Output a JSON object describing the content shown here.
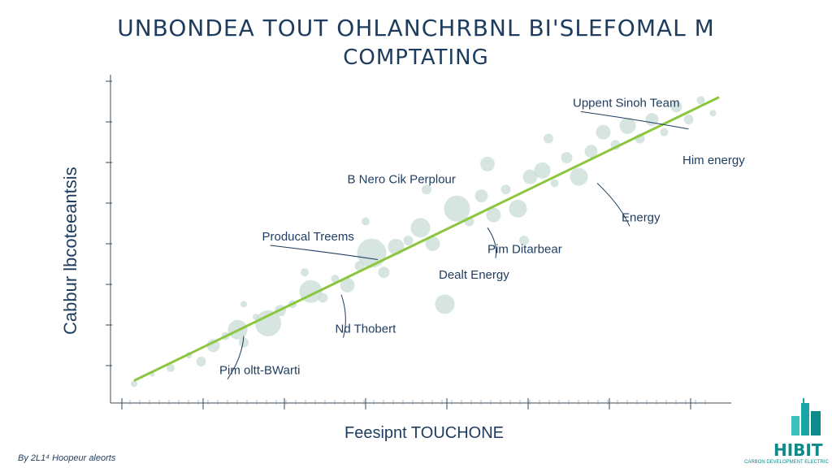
{
  "chart_data": {
    "type": "scatter",
    "title_line1": "UNBONDEA TOUT OHLANCHRBNL BI'SLEFOMAL M",
    "title_line2": "COMPTATING",
    "xlabel": "Feesipnt TOUCHONE",
    "ylabel": "Cabbur lbcoteeantsis",
    "xlim": [
      0,
      100
    ],
    "ylim": [
      0,
      100
    ],
    "trend_line": {
      "x": [
        2,
        98
      ],
      "y": [
        6,
        95
      ],
      "color": "#8cc63f"
    },
    "series": [
      {
        "color": "#c8dcd6",
        "points": [
          {
            "x": 2,
            "y": 5,
            "r": 4
          },
          {
            "x": 5,
            "y": 8,
            "r": 3
          },
          {
            "x": 8,
            "y": 10,
            "r": 5
          },
          {
            "x": 11,
            "y": 14,
            "r": 4
          },
          {
            "x": 13,
            "y": 12,
            "r": 6
          },
          {
            "x": 15,
            "y": 17,
            "r": 8
          },
          {
            "x": 17,
            "y": 20,
            "r": 5
          },
          {
            "x": 19,
            "y": 22,
            "r": 12
          },
          {
            "x": 20,
            "y": 18,
            "r": 6
          },
          {
            "x": 22,
            "y": 26,
            "r": 4
          },
          {
            "x": 24,
            "y": 24,
            "r": 16
          },
          {
            "x": 26,
            "y": 28,
            "r": 7
          },
          {
            "x": 28,
            "y": 30,
            "r": 5
          },
          {
            "x": 31,
            "y": 34,
            "r": 14
          },
          {
            "x": 33,
            "y": 32,
            "r": 6
          },
          {
            "x": 35,
            "y": 38,
            "r": 5
          },
          {
            "x": 37,
            "y": 36,
            "r": 9
          },
          {
            "x": 39,
            "y": 42,
            "r": 6
          },
          {
            "x": 41,
            "y": 46,
            "r": 18
          },
          {
            "x": 43,
            "y": 40,
            "r": 7
          },
          {
            "x": 45,
            "y": 48,
            "r": 10
          },
          {
            "x": 47,
            "y": 50,
            "r": 6
          },
          {
            "x": 49,
            "y": 54,
            "r": 12
          },
          {
            "x": 51,
            "y": 49,
            "r": 9
          },
          {
            "x": 53,
            "y": 30,
            "r": 12
          },
          {
            "x": 55,
            "y": 60,
            "r": 16
          },
          {
            "x": 57,
            "y": 56,
            "r": 6
          },
          {
            "x": 59,
            "y": 64,
            "r": 8
          },
          {
            "x": 61,
            "y": 58,
            "r": 9
          },
          {
            "x": 63,
            "y": 66,
            "r": 6
          },
          {
            "x": 65,
            "y": 60,
            "r": 11
          },
          {
            "x": 67,
            "y": 70,
            "r": 9
          },
          {
            "x": 69,
            "y": 72,
            "r": 10
          },
          {
            "x": 71,
            "y": 68,
            "r": 5
          },
          {
            "x": 73,
            "y": 76,
            "r": 7
          },
          {
            "x": 75,
            "y": 70,
            "r": 11
          },
          {
            "x": 77,
            "y": 78,
            "r": 8
          },
          {
            "x": 79,
            "y": 84,
            "r": 9
          },
          {
            "x": 81,
            "y": 80,
            "r": 6
          },
          {
            "x": 83,
            "y": 86,
            "r": 10
          },
          {
            "x": 85,
            "y": 82,
            "r": 6
          },
          {
            "x": 87,
            "y": 88,
            "r": 8
          },
          {
            "x": 89,
            "y": 84,
            "r": 5
          },
          {
            "x": 91,
            "y": 92,
            "r": 7
          },
          {
            "x": 93,
            "y": 88,
            "r": 6
          },
          {
            "x": 95,
            "y": 94,
            "r": 5
          },
          {
            "x": 97,
            "y": 90,
            "r": 4
          },
          {
            "x": 60,
            "y": 74,
            "r": 9
          },
          {
            "x": 70,
            "y": 82,
            "r": 6
          },
          {
            "x": 50,
            "y": 66,
            "r": 6
          },
          {
            "x": 40,
            "y": 56,
            "r": 5
          },
          {
            "x": 30,
            "y": 40,
            "r": 5
          },
          {
            "x": 20,
            "y": 30,
            "r": 4
          },
          {
            "x": 66,
            "y": 50,
            "r": 6
          }
        ]
      }
    ],
    "annotations": [
      {
        "text": "Uppent Sinoh Team",
        "x": 74,
        "y": 92,
        "ax": 93,
        "ay": 85
      },
      {
        "text": "Him energy",
        "x": 92,
        "y": 74
      },
      {
        "text": "B Nero Cik Perplour",
        "x": 37,
        "y": 68
      },
      {
        "text": "Energy",
        "x": 82,
        "y": 56,
        "ax": 78,
        "ay": 68
      },
      {
        "text": "Producal Treems",
        "x": 23,
        "y": 50,
        "ax": 42,
        "ay": 44
      },
      {
        "text": "Pim Ditarbear",
        "x": 60,
        "y": 46,
        "ax": 60,
        "ay": 54
      },
      {
        "text": "Dealt Energy",
        "x": 52,
        "y": 38
      },
      {
        "text": "Nd Thobert",
        "x": 35,
        "y": 21,
        "ax": 36,
        "ay": 33
      },
      {
        "text": "Pim oltt-BWarti",
        "x": 16,
        "y": 8,
        "ax": 20,
        "ay": 20
      }
    ]
  },
  "footer": "By 2L1⁴ Hoopeur aleorts",
  "logo": {
    "text": "HIBIT",
    "subtext": "CARBON DEVELOPMENT ELECTRIC"
  }
}
